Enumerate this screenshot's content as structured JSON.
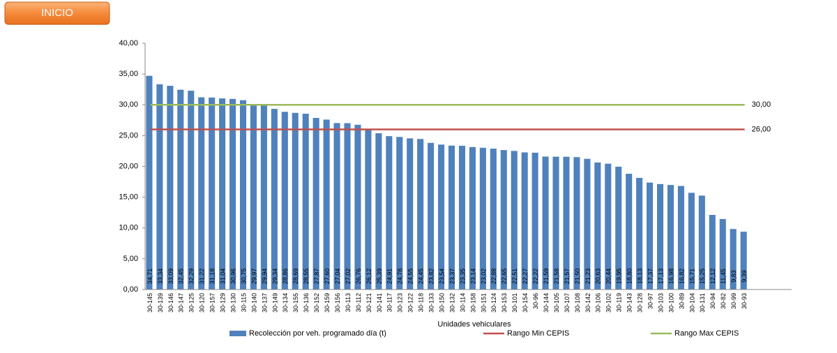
{
  "button": {
    "label": "INICIO"
  },
  "chart_data": {
    "type": "bar",
    "x_label": "Unidades vehiculares",
    "categories": [
      "30-145",
      "30-139",
      "30-146",
      "30-147",
      "30-125",
      "30-120",
      "30-157",
      "30-129",
      "30-130",
      "30-115",
      "30-140",
      "30-137",
      "30-149",
      "30-134",
      "30-155",
      "30-136",
      "30-152",
      "30-159",
      "30-156",
      "30-113",
      "30-112",
      "30-121",
      "30-141",
      "30-117",
      "30-123",
      "30-122",
      "30-118",
      "30-133",
      "30-150",
      "30-132",
      "30-114",
      "30-158",
      "30-151",
      "30-124",
      "30-153",
      "30-101",
      "30-154",
      "30-96",
      "30-144",
      "30-105",
      "30-107",
      "30-108",
      "30-142",
      "30-106",
      "30-102",
      "30-119",
      "30-143",
      "30-128",
      "30-97",
      "30-103",
      "30-100",
      "30-89",
      "30-104",
      "30-131",
      "30-94",
      "30-82",
      "30-99",
      "30-93"
    ],
    "series": [
      {
        "name": "Recolección por veh. programado día (t)",
        "color": "#4f81bd",
        "values": [
          34.71,
          33.34,
          33.09,
          32.45,
          32.29,
          31.22,
          31.18,
          31.04,
          30.96,
          30.75,
          29.97,
          29.94,
          29.34,
          28.86,
          28.69,
          28.55,
          27.87,
          27.6,
          27.04,
          27.02,
          26.76,
          26.12,
          25.39,
          24.91,
          24.78,
          24.55,
          24.45,
          23.82,
          23.54,
          23.37,
          23.35,
          23.14,
          23.02,
          22.88,
          22.65,
          22.51,
          22.27,
          22.22,
          21.59,
          21.58,
          21.57,
          21.5,
          21.23,
          20.63,
          20.44,
          19.95,
          18.8,
          18.13,
          17.37,
          17.13,
          16.98,
          16.82,
          15.71,
          15.25,
          12.12,
          11.45,
          9.83,
          9.39
        ],
        "value_labels": [
          "34,71",
          "33,34",
          "33,09",
          "32,45",
          "32,29",
          "31,22",
          "31,18",
          "31,04",
          "30,96",
          "30,75",
          "29,97",
          "29,94",
          "29,34",
          "28,86",
          "28,69",
          "28,55",
          "27,87",
          "27,60",
          "27,04",
          "27,02",
          "26,76",
          "26,12",
          "25,39",
          "24,91",
          "24,78",
          "24,55",
          "24,45",
          "23,82",
          "23,54",
          "23,37",
          "23,35",
          "23,14",
          "23,02",
          "22,88",
          "22,65",
          "22,51",
          "22,27",
          "22,22",
          "21,59",
          "21,58",
          "21,57",
          "21,50",
          "21,23",
          "20,63",
          "20,44",
          "19,95",
          "18,80",
          "18,13",
          "17,37",
          "17,13",
          "16,98",
          "16,82",
          "15,71",
          "15,25",
          "12,12",
          "11,45",
          "9,83",
          "9,39"
        ]
      }
    ],
    "lines": [
      {
        "name": "Rango Min CEPIS",
        "color": "#c0504d",
        "value": 26,
        "value_label": "26,00"
      },
      {
        "name": "Rango Max CEPIS",
        "color": "#9bbb59",
        "value": 30,
        "value_label": "30,00"
      }
    ],
    "ylim": [
      0,
      40
    ],
    "yticks": [
      {
        "value": 0,
        "label": "0,00"
      },
      {
        "value": 5,
        "label": "5,00"
      },
      {
        "value": 10,
        "label": "10,00"
      },
      {
        "value": 15,
        "label": "15,00"
      },
      {
        "value": 20,
        "label": "20,00"
      },
      {
        "value": 25,
        "label": "25,00"
      },
      {
        "value": 30,
        "label": "30,00"
      },
      {
        "value": 35,
        "label": "35,00"
      },
      {
        "value": 40,
        "label": "40,00"
      }
    ]
  }
}
